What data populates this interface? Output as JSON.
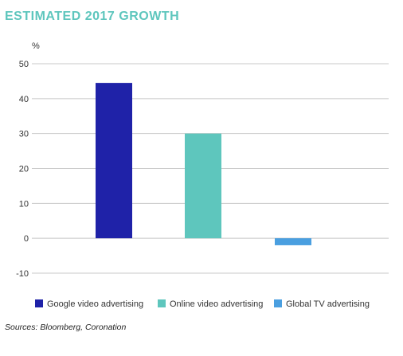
{
  "chart_data": {
    "type": "bar",
    "title": "ESTIMATED 2017 GROWTH",
    "ylabel": "%",
    "xlabel": "",
    "ylim": [
      -10,
      50
    ],
    "yticks": [
      50,
      40,
      30,
      20,
      10,
      0,
      -10
    ],
    "grid": true,
    "legend_position": "bottom",
    "categories": [
      "Google video advertising",
      "Online video advertising",
      "Global TV advertising"
    ],
    "values": [
      44.5,
      30,
      -2
    ],
    "colors": [
      "#1f22a8",
      "#5ec6bd",
      "#4a9fe0"
    ],
    "source": "Sources: Bloomberg, Coronation"
  }
}
